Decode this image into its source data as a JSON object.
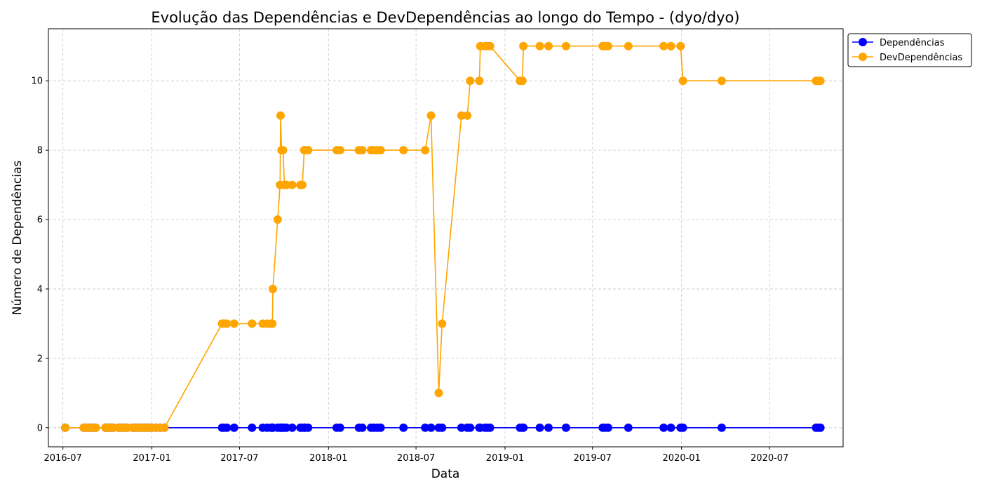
{
  "chart_data": {
    "type": "line",
    "title": "Evolução das Dependências e DevDependências ao longo do Tempo - (dyo/dyo)",
    "xlabel": "Data",
    "ylabel": "Número de Dependências",
    "xlim": [
      "2016-06-01",
      "2020-11-30"
    ],
    "ylim": [
      -0.55,
      11.5
    ],
    "x_ticks": [
      "2016-07-01",
      "2017-01-01",
      "2017-07-01",
      "2018-01-01",
      "2018-07-01",
      "2019-01-01",
      "2019-07-01",
      "2020-01-01",
      "2020-07-01"
    ],
    "x_tick_labels": [
      "2016-07",
      "2017-01",
      "2017-07",
      "2018-01",
      "2018-07",
      "2019-01",
      "2019-07",
      "2020-01",
      "2020-07"
    ],
    "y_ticks": [
      0,
      2,
      4,
      6,
      8,
      10
    ],
    "grid": true,
    "legend_position": "outside-top-right",
    "colors": {
      "Dependências": "#0000ff",
      "DevDependências": "#ffa500"
    },
    "x": [
      "2016-07-06",
      "2016-08-13",
      "2016-08-18",
      "2016-08-23",
      "2016-08-28",
      "2016-09-02",
      "2016-09-07",
      "2016-09-27",
      "2016-10-01",
      "2016-10-05",
      "2016-10-09",
      "2016-10-13",
      "2016-10-24",
      "2016-10-30",
      "2016-11-05",
      "2016-11-11",
      "2016-11-22",
      "2016-11-27",
      "2016-12-02",
      "2016-12-07",
      "2016-12-12",
      "2016-12-17",
      "2016-12-22",
      "2016-12-27",
      "2017-01-01",
      "2017-01-10",
      "2017-01-18",
      "2017-01-27",
      "2017-05-26",
      "2017-05-30",
      "2017-06-05",
      "2017-06-20",
      "2017-07-27",
      "2017-08-18",
      "2017-08-27",
      "2017-09-04",
      "2017-09-07",
      "2017-09-08",
      "2017-09-18",
      "2017-09-23",
      "2017-09-24",
      "2017-09-26",
      "2017-09-29",
      "2017-10-02",
      "2017-10-06",
      "2017-10-18",
      "2017-11-04",
      "2017-11-08",
      "2017-11-12",
      "2017-11-13",
      "2017-11-20",
      "2018-01-18",
      "2018-01-25",
      "2018-03-05",
      "2018-03-12",
      "2018-03-30",
      "2018-04-05",
      "2018-04-12",
      "2018-04-19",
      "2018-06-05",
      "2018-07-20",
      "2018-08-01",
      "2018-08-17",
      "2018-08-24",
      "2018-10-03",
      "2018-10-15",
      "2018-10-21",
      "2018-11-09",
      "2018-11-11",
      "2018-11-21",
      "2018-11-26",
      "2018-12-01",
      "2019-02-01",
      "2019-02-06",
      "2019-02-08",
      "2019-03-14",
      "2019-04-01",
      "2019-05-07",
      "2019-07-22",
      "2019-07-27",
      "2019-08-02",
      "2019-09-13",
      "2019-11-25",
      "2019-12-10",
      "2019-12-30",
      "2020-01-04",
      "2020-03-24",
      "2020-10-05",
      "2020-10-09",
      "2020-10-14"
    ],
    "series": [
      {
        "name": "Dependências",
        "values": [
          0,
          0,
          0,
          0,
          0,
          0,
          0,
          0,
          0,
          0,
          0,
          0,
          0,
          0,
          0,
          0,
          0,
          0,
          0,
          0,
          0,
          0,
          0,
          0,
          0,
          0,
          0,
          0,
          0,
          0,
          0,
          0,
          0,
          0,
          0,
          0,
          0,
          0,
          0,
          0,
          0,
          0,
          0,
          0,
          0,
          0,
          0,
          0,
          0,
          0,
          0,
          0,
          0,
          0,
          0,
          0,
          0,
          0,
          0,
          0,
          0,
          0,
          0,
          0,
          0,
          0,
          0,
          0,
          0,
          0,
          0,
          0,
          0,
          0,
          0,
          0,
          0,
          0,
          0,
          0,
          0,
          0,
          0,
          0,
          0,
          0,
          0,
          0,
          0,
          0
        ]
      },
      {
        "name": "DevDependências",
        "values": [
          0,
          0,
          0,
          0,
          0,
          0,
          0,
          0,
          0,
          0,
          0,
          0,
          0,
          0,
          0,
          0,
          0,
          0,
          0,
          0,
          0,
          0,
          0,
          0,
          0,
          0,
          0,
          0,
          3,
          3,
          3,
          3,
          3,
          3,
          3,
          3,
          3,
          4,
          6,
          7,
          9,
          8,
          8,
          7,
          7,
          7,
          7,
          7,
          8,
          8,
          8,
          8,
          8,
          8,
          8,
          8,
          8,
          8,
          8,
          8,
          8,
          9,
          1,
          3,
          9,
          9,
          10,
          10,
          11,
          11,
          11,
          11,
          10,
          10,
          11,
          11,
          11,
          11,
          11,
          11,
          11,
          11,
          11,
          11,
          11,
          10,
          10,
          10,
          10,
          10
        ]
      }
    ]
  }
}
